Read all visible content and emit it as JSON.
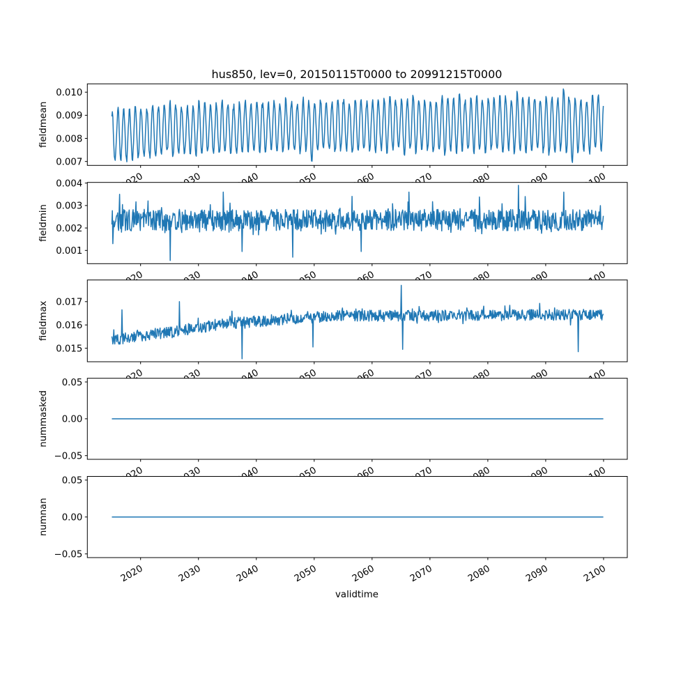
{
  "chart_data": {
    "type": "line",
    "title": "hus850, lev=0, 20150115T0000 to 20991215T0000",
    "xlabel": "validtime",
    "x_start": 2015.04,
    "x_end": 2099.96,
    "x_step": "monthly",
    "xlim": [
      2010.8,
      2104.1
    ],
    "xticks": [
      2020,
      2030,
      2040,
      2050,
      2060,
      2070,
      2080,
      2090,
      2100
    ],
    "xtick_labels": [
      "2020",
      "2030",
      "2040",
      "2050",
      "2060",
      "2070",
      "2080",
      "2090",
      "2100"
    ],
    "line_color": "#1f77b4",
    "panels": [
      {
        "ylabel": "fieldmean",
        "ylim": [
          0.00683,
          0.01036
        ],
        "yticks": [
          0.007,
          0.008,
          0.009,
          0.01
        ],
        "ytick_labels": [
          "0.007",
          "0.008",
          "0.009",
          "0.010"
        ],
        "kind": "seasonal",
        "annual_peak": [
          0.0091,
          0.0093,
          0.0092,
          0.0092,
          0.0094,
          0.0092,
          0.0093,
          0.0094,
          0.0094,
          0.0094,
          0.0096,
          0.0094,
          0.0093,
          0.0094,
          0.0094,
          0.0096,
          0.0095,
          0.0094,
          0.0095,
          0.0096,
          0.0095,
          0.0094,
          0.0096,
          0.0096,
          0.0095,
          0.0097,
          0.0095,
          0.0095,
          0.0096,
          0.0095,
          0.0097,
          0.0096,
          0.0095,
          0.0097,
          0.0096,
          0.0095,
          0.0097,
          0.0096,
          0.0096,
          0.0098,
          0.0096,
          0.0095,
          0.0097,
          0.0097,
          0.0096,
          0.0097,
          0.0096,
          0.0097,
          0.0098,
          0.0096,
          0.0097,
          0.0097,
          0.0098,
          0.0096,
          0.0097,
          0.0097,
          0.0096,
          0.0098,
          0.0097,
          0.0097,
          0.0099,
          0.0096,
          0.0097,
          0.0098,
          0.0096,
          0.0098,
          0.0097,
          0.0098,
          0.0098,
          0.0097,
          0.01,
          0.0097,
          0.0098,
          0.0098,
          0.0097,
          0.0099,
          0.0098,
          0.0098,
          0.0102,
          0.0097,
          0.0098,
          0.0096,
          0.0097,
          0.0099,
          0.0098
        ],
        "annual_trough": [
          0.007,
          0.0071,
          0.007,
          0.0071,
          0.0072,
          0.0073,
          0.0072,
          0.0072,
          0.0073,
          0.0074,
          0.0072,
          0.0073,
          0.0073,
          0.0074,
          0.0073,
          0.0073,
          0.0074,
          0.0074,
          0.0073,
          0.0074,
          0.0074,
          0.0073,
          0.0074,
          0.0075,
          0.0074,
          0.0074,
          0.0074,
          0.0075,
          0.0074,
          0.0074,
          0.0075,
          0.0074,
          0.0074,
          0.0075,
          0.007,
          0.0074,
          0.0075,
          0.0075,
          0.0074,
          0.0075,
          0.0075,
          0.0074,
          0.0075,
          0.0075,
          0.0075,
          0.0074,
          0.0075,
          0.0074,
          0.0075,
          0.0075,
          0.0073,
          0.0075,
          0.0074,
          0.0075,
          0.0075,
          0.0074,
          0.0075,
          0.0073,
          0.0075,
          0.0074,
          0.0075,
          0.0075,
          0.0074,
          0.0075,
          0.0074,
          0.0075,
          0.0075,
          0.0074,
          0.0075,
          0.0074,
          0.0075,
          0.0074,
          0.0075,
          0.0075,
          0.0074,
          0.0073,
          0.0074,
          0.0075,
          0.0074,
          0.007,
          0.0074,
          0.0075,
          0.0074,
          0.0075,
          0.0075
        ]
      },
      {
        "ylabel": "fieldmin",
        "ylim": [
          0.00041,
          0.00403
        ],
        "yticks": [
          0.001,
          0.002,
          0.003,
          0.004
        ],
        "ytick_labels": [
          "0.001",
          "0.002",
          "0.003",
          "0.004"
        ],
        "kind": "noisy",
        "base": 0.00235,
        "spread": 0.0006,
        "spikes": [
          [
            2015.2,
            0.0013
          ],
          [
            2016.4,
            0.0035
          ],
          [
            2025.1,
            0.00055
          ],
          [
            2034.3,
            0.0036
          ],
          [
            2037.5,
            0.00095
          ],
          [
            2046.3,
            0.0007
          ],
          [
            2058.1,
            0.00095
          ],
          [
            2066.4,
            0.0036
          ],
          [
            2085.3,
            0.0039
          ],
          [
            2093.1,
            0.0036
          ]
        ]
      },
      {
        "ylabel": "fieldmax",
        "ylim": [
          0.01442,
          0.01793
        ],
        "yticks": [
          0.015,
          0.016,
          0.017
        ],
        "ytick_labels": [
          "0.015",
          "0.016",
          "0.017"
        ],
        "kind": "noisy",
        "trend": [
          [
            2015,
            0.01535
          ],
          [
            2025,
            0.0157
          ],
          [
            2035,
            0.01605
          ],
          [
            2045,
            0.01625
          ],
          [
            2055,
            0.0164
          ],
          [
            2070,
            0.0164
          ],
          [
            2100,
            0.01645
          ]
        ],
        "spread": 0.0003,
        "spikes": [
          [
            2016.8,
            0.01665
          ],
          [
            2026.7,
            0.017
          ],
          [
            2037.5,
            0.01455
          ],
          [
            2049.8,
            0.01505
          ],
          [
            2065.0,
            0.0177
          ],
          [
            2065.3,
            0.01495
          ],
          [
            2095.6,
            0.01485
          ]
        ]
      },
      {
        "ylabel": "nummasked",
        "ylim": [
          -0.055,
          0.055
        ],
        "yticks": [
          -0.05,
          0.0,
          0.05
        ],
        "ytick_labels": [
          "−0.05",
          "0.00",
          "0.05"
        ],
        "kind": "constant",
        "value": 0
      },
      {
        "ylabel": "numnan",
        "ylim": [
          -0.055,
          0.055
        ],
        "yticks": [
          -0.05,
          0.0,
          0.05
        ],
        "ytick_labels": [
          "−0.05",
          "0.00",
          "0.05"
        ],
        "kind": "constant",
        "value": 0
      }
    ]
  }
}
